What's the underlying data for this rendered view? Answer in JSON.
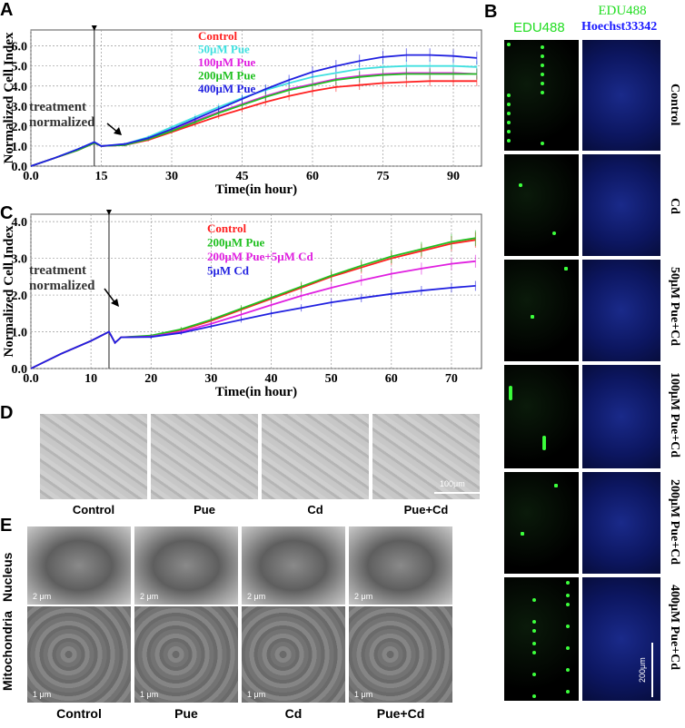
{
  "panels": {
    "A": "A",
    "B": "B",
    "C": "C",
    "D": "D",
    "E": "E"
  },
  "chart_data": [
    {
      "type": "line",
      "panel": "A",
      "ylabel": "Normalized Cell Index",
      "xlabel": "Time(in hour)",
      "xlim": [
        0,
        96
      ],
      "ylim": [
        0,
        6.8
      ],
      "xticks": [
        "0.0",
        "15",
        "30",
        "45",
        "60",
        "75",
        "90"
      ],
      "yticks": [
        "0.0",
        "1.0",
        "2.0",
        "3.0",
        "4.0",
        "5.0",
        "6.0"
      ],
      "annotation": [
        "treatment",
        "normalized"
      ],
      "treatment_time": 13.5,
      "grid": true,
      "legend_position": "top-center",
      "x": [
        0,
        5,
        10,
        13.5,
        15,
        20,
        25,
        30,
        35,
        40,
        45,
        50,
        55,
        60,
        65,
        70,
        75,
        80,
        85,
        90,
        95
      ],
      "series": [
        {
          "name": "Control",
          "color": "#ff2020",
          "values": [
            0,
            0.4,
            0.8,
            1.15,
            1.0,
            1.05,
            1.3,
            1.7,
            2.1,
            2.5,
            2.85,
            3.2,
            3.5,
            3.75,
            3.95,
            4.05,
            4.15,
            4.2,
            4.25,
            4.25,
            4.25
          ]
        },
        {
          "name": "50μM Pue",
          "color": "#40e0e0",
          "values": [
            0,
            0.4,
            0.85,
            1.2,
            1.0,
            1.1,
            1.45,
            1.95,
            2.45,
            2.95,
            3.4,
            3.8,
            4.15,
            4.45,
            4.65,
            4.85,
            4.95,
            5.0,
            5.0,
            5.0,
            4.95
          ]
        },
        {
          "name": "100μM Pue",
          "color": "#e020e0",
          "values": [
            0,
            0.4,
            0.8,
            1.15,
            1.0,
            1.05,
            1.35,
            1.8,
            2.25,
            2.7,
            3.1,
            3.5,
            3.85,
            4.1,
            4.35,
            4.5,
            4.6,
            4.65,
            4.65,
            4.65,
            4.6
          ]
        },
        {
          "name": "200μM Pue",
          "color": "#20c020",
          "values": [
            0,
            0.4,
            0.8,
            1.15,
            1.0,
            1.05,
            1.35,
            1.75,
            2.2,
            2.65,
            3.05,
            3.45,
            3.8,
            4.05,
            4.3,
            4.45,
            4.55,
            4.6,
            4.6,
            4.6,
            4.6
          ]
        },
        {
          "name": "400μM Pue",
          "color": "#2020e0",
          "values": [
            0,
            0.4,
            0.85,
            1.2,
            1.0,
            1.1,
            1.4,
            1.85,
            2.35,
            2.85,
            3.35,
            3.85,
            4.3,
            4.7,
            5.0,
            5.25,
            5.45,
            5.55,
            5.55,
            5.5,
            5.4
          ]
        }
      ]
    },
    {
      "type": "line",
      "panel": "C",
      "ylabel": "Normalized Cell Index",
      "xlabel": "Time(in hour)",
      "xlim": [
        0,
        75
      ],
      "ylim": [
        0,
        4.2
      ],
      "xticks": [
        "0.0",
        "10",
        "20",
        "30",
        "40",
        "50",
        "60",
        "70"
      ],
      "yticks": [
        "0.0",
        "1.0",
        "2.0",
        "3.0",
        "4.0"
      ],
      "annotation": [
        "treatment",
        "normalized"
      ],
      "treatment_time": 13,
      "grid": true,
      "legend_position": "top-center",
      "x": [
        0,
        5,
        10,
        13,
        14,
        15,
        20,
        25,
        30,
        35,
        40,
        45,
        50,
        55,
        60,
        65,
        70,
        74
      ],
      "series": [
        {
          "name": "Control",
          "color": "#ff2020",
          "values": [
            0,
            0.4,
            0.75,
            1.0,
            0.7,
            0.85,
            0.88,
            1.05,
            1.3,
            1.6,
            1.9,
            2.2,
            2.5,
            2.75,
            3.0,
            3.2,
            3.4,
            3.5
          ]
        },
        {
          "name": "200μM Pue",
          "color": "#20c020",
          "values": [
            0,
            0.4,
            0.75,
            1.0,
            0.7,
            0.85,
            0.9,
            1.07,
            1.33,
            1.63,
            1.93,
            2.23,
            2.53,
            2.8,
            3.05,
            3.25,
            3.45,
            3.55
          ]
        },
        {
          "name": "200μM Pue+5μM Cd",
          "color": "#e020e0",
          "values": [
            0,
            0.4,
            0.75,
            1.0,
            0.7,
            0.85,
            0.87,
            1.0,
            1.22,
            1.47,
            1.73,
            1.98,
            2.2,
            2.4,
            2.58,
            2.72,
            2.85,
            2.92
          ]
        },
        {
          "name": "5μM Cd",
          "color": "#2020e0",
          "values": [
            0,
            0.4,
            0.75,
            1.0,
            0.7,
            0.85,
            0.86,
            0.97,
            1.15,
            1.33,
            1.5,
            1.65,
            1.8,
            1.92,
            2.03,
            2.12,
            2.2,
            2.25
          ]
        }
      ]
    }
  ],
  "panelB": {
    "headers": {
      "edu": "EDU488",
      "merge_top": "EDU488",
      "merge_bottom": "Hoechst33342"
    },
    "rows": [
      "Control",
      "Cd",
      "50μM Pue+Cd",
      "100μM Pue+Cd",
      "200μM Pue+Cd",
      "400μM Pue+Cd"
    ],
    "scale": "200μm"
  },
  "panelD": {
    "labels": [
      "Control",
      "Pue",
      "Cd",
      "Pue+Cd"
    ],
    "scale": "100μm"
  },
  "panelE": {
    "labels": [
      "Control",
      "Pue",
      "Cd",
      "Pue+Cd"
    ],
    "rows": [
      "Nucleus",
      "Mitochondria"
    ],
    "scale_top": "2 μm",
    "scale_bottom": "1 μm"
  }
}
